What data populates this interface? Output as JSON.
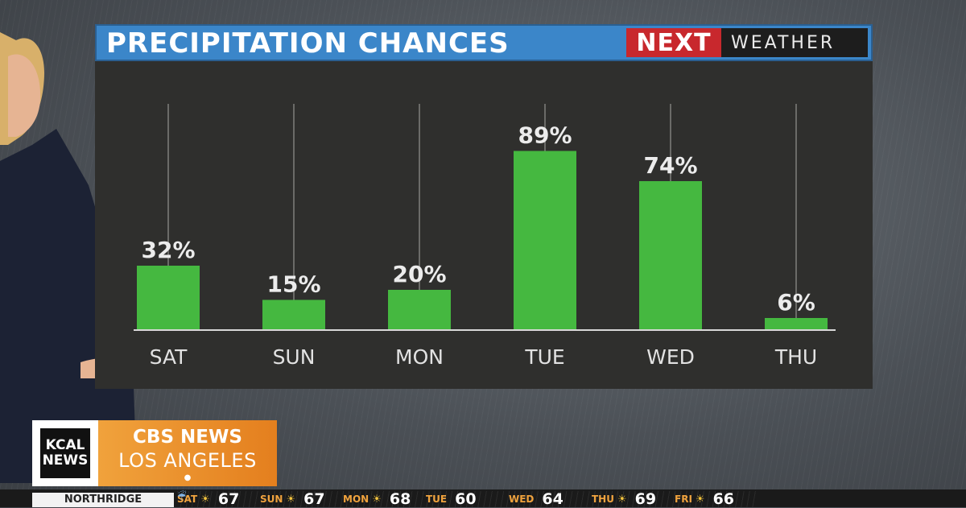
{
  "header": {
    "title": "PRECIPITATION CHANCES",
    "brand_mark": "NEXT",
    "brand_text": "WEATHER"
  },
  "chart_data": {
    "type": "bar",
    "title": "PRECIPITATION CHANCES",
    "categories": [
      "SAT",
      "SUN",
      "MON",
      "TUE",
      "WED",
      "THU"
    ],
    "values": [
      32,
      15,
      20,
      89,
      74,
      6
    ],
    "value_labels": [
      "32%",
      "15%",
      "20%",
      "89%",
      "74%",
      "6%"
    ],
    "ylim": [
      0,
      100
    ],
    "bar_color": "#45b840"
  },
  "ticker": {
    "logo_line1": "KCAL",
    "logo_line2": "NEWS",
    "brand_line1": "CBS NEWS",
    "brand_line2": "LOS ANGELES",
    "city": "NORTHRIDGE",
    "forecast": [
      {
        "day": "SAT",
        "icon": "sun-icon",
        "temp": "67"
      },
      {
        "day": "SUN",
        "icon": "sun-icon",
        "temp": "67"
      },
      {
        "day": "MON",
        "icon": "sun-icon",
        "temp": "68"
      },
      {
        "day": "TUE",
        "icon": "rain-icon",
        "temp": "60"
      },
      {
        "day": "WED",
        "icon": "rain-icon",
        "temp": "64"
      },
      {
        "day": "THU",
        "icon": "sun-icon",
        "temp": "69"
      },
      {
        "day": "FRI",
        "icon": "sun-icon",
        "temp": "66"
      }
    ]
  },
  "colors": {
    "accent_blue": "#3b86c9",
    "brand_red": "#c8282d",
    "bar_green": "#45b840",
    "ticker_orange": "#f0a23c"
  }
}
